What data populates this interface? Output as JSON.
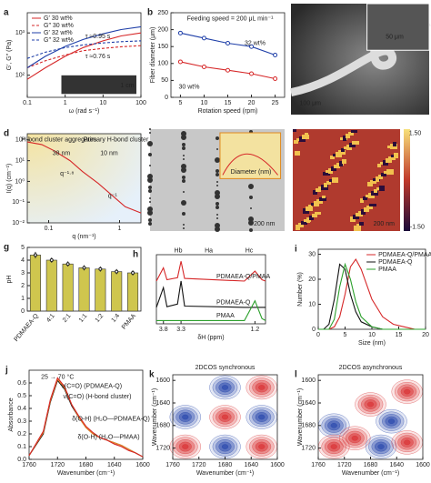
{
  "chart_data": [
    {
      "label": "a",
      "type": "line",
      "xlog": true,
      "ylog": true,
      "xlim": [
        0.1,
        100
      ],
      "ylim": [
        30,
        3000
      ],
      "xticks": [
        0.1,
        1,
        10,
        100
      ],
      "yticks": [
        {
          "value": 100,
          "label": "10²"
        },
        {
          "value": 1000,
          "label": "10³"
        }
      ],
      "xlabel": "ω (rad s⁻¹)",
      "ylabel": "G′, G″ (Pa)",
      "legend": "upper left",
      "x": [
        0.1,
        0.3,
        1,
        3,
        10,
        30,
        100
      ],
      "series": [
        {
          "name": "G′ 30 wt%",
          "color": "#d62728",
          "dash": false,
          "values": [
            80,
            150,
            280,
            450,
            650,
            850,
            1000
          ]
        },
        {
          "name": "G″ 30 wt%",
          "color": "#d62728",
          "dash": true,
          "values": [
            150,
            220,
            300,
            380,
            430,
            470,
            500
          ]
        },
        {
          "name": "G′ 32 wt%",
          "color": "#1f3fa8",
          "dash": false,
          "values": [
            150,
            280,
            480,
            700,
            950,
            1200,
            1400
          ]
        },
        {
          "name": "G″ 32 wt%",
          "color": "#1f3fa8",
          "dash": true,
          "values": [
            250,
            350,
            450,
            520,
            580,
            620,
            650
          ]
        }
      ],
      "annotations": [
        "τ ≈0.95 s",
        "τ ≈0.76 s",
        "1 cm"
      ]
    },
    {
      "label": "b",
      "type": "line",
      "markers": true,
      "xlim": [
        3,
        27
      ],
      "ylim": [
        0,
        250
      ],
      "xticks": [
        5,
        10,
        15,
        20,
        25
      ],
      "yticks": [
        0,
        50,
        100,
        150,
        200,
        250
      ],
      "xlabel": "Rotation speed (rpm)",
      "ylabel": "Fiber diameter (μm)",
      "x": [
        5,
        10,
        15,
        20,
        25
      ],
      "series": [
        {
          "color": "#1f3fa8",
          "values": [
            190,
            175,
            160,
            150,
            125
          ]
        },
        {
          "color": "#d62728",
          "values": [
            105,
            90,
            80,
            70,
            55
          ]
        }
      ],
      "annotations": [
        "Feeding speed = 200 μL min⁻¹",
        "32 wt%",
        "30 wt%"
      ]
    },
    {
      "label": "c",
      "type": "image",
      "annotations": [
        "50 μm",
        "100 μm"
      ]
    },
    {
      "label": "d",
      "type": "line",
      "xlog": true,
      "ylog": true,
      "xlim": [
        0.05,
        2
      ],
      "ylim": [
        0.01,
        200
      ],
      "xticks": [
        0.1,
        1
      ],
      "yticks": [
        {
          "value": 0.01,
          "label": "10⁻²"
        },
        {
          "value": 0.1,
          "label": "10⁻¹"
        },
        {
          "value": 1,
          "label": "10⁰"
        },
        {
          "value": 10,
          "label": "10¹"
        },
        {
          "value": 100,
          "label": "10²"
        }
      ],
      "xlabel": "q (nm⁻¹)",
      "ylabel": "I(q) (cm⁻¹)",
      "x": [
        0.05,
        0.08,
        0.12,
        0.2,
        0.3,
        0.5,
        0.8,
        1.2,
        2
      ],
      "series": [
        {
          "color": "#d62728",
          "values": [
            80,
            60,
            30,
            10,
            3,
            0.8,
            0.2,
            0.06,
            0.03
          ]
        }
      ],
      "annotations": [
        "H-bond cluster aggregates",
        "Primary H-bond cluster",
        "38 nm",
        "10 nm",
        "q⁻¹·⁸",
        "q⁻¹"
      ]
    },
    {
      "label": "e",
      "type": "image",
      "annotations": [
        "Diameter (nm)",
        "200 nm"
      ]
    },
    {
      "label": "f",
      "type": "image",
      "annotations": [
        "1.50",
        "-1.50",
        "200 nm"
      ]
    },
    {
      "label": "g",
      "type": "bar",
      "ylim": [
        0,
        5
      ],
      "yticks": [
        0,
        1,
        2,
        3,
        4,
        5
      ],
      "ylabel": "pH",
      "color": "#cfc64e",
      "categories": [
        "PDMAEA-Q",
        "4:1",
        "2:1",
        "1:1",
        "1:2",
        "1:4",
        "PMAA"
      ],
      "values": [
        4.4,
        4.0,
        3.7,
        3.4,
        3.3,
        3.1,
        3.0
      ],
      "errors": [
        0.25,
        0.2,
        0.2,
        0.2,
        0.2,
        0.2,
        0.2
      ]
    },
    {
      "label": "h",
      "type": "line",
      "xlim": [
        4.0,
        0.9
      ],
      "ylim": [
        -0.5,
        10
      ],
      "xticks": [
        3.8,
        3.3,
        1.2
      ],
      "xlabel": "δH (ppm)",
      "labels": true,
      "x": [
        4.0,
        3.8,
        3.7,
        3.4,
        3.3,
        3.2,
        1.5,
        1.2,
        1.0,
        0.9
      ],
      "series": [
        {
          "name": "PDMAEA-Q/PMAA",
          "color": "#d62728",
          "values": [
            6,
            8,
            6.2,
            6.5,
            9,
            6.4,
            6,
            7.5,
            6.2,
            6
          ]
        },
        {
          "name": "PDMAEA-Q",
          "color": "#111111",
          "values": [
            2,
            5,
            2.1,
            2.5,
            6,
            2.2,
            2,
            2,
            2,
            2
          ]
        },
        {
          "name": "PMAA",
          "color": "#2ca02c",
          "values": [
            0,
            0,
            0,
            0,
            0,
            0,
            0,
            3,
            0.3,
            0
          ]
        }
      ],
      "annotations": [
        "Hb",
        "Ha",
        "Hc"
      ]
    },
    {
      "label": "i",
      "type": "line",
      "xlim": [
        0,
        20
      ],
      "ylim": [
        0,
        32
      ],
      "xticks": [
        0,
        5,
        10,
        15,
        20
      ],
      "yticks": [
        0,
        10,
        20,
        30
      ],
      "xlabel": "Size (nm)",
      "ylabel": "Number (%)",
      "legend": "upper right",
      "x": [
        0,
        1,
        2,
        3,
        4,
        5,
        6,
        7,
        8,
        10,
        12,
        14,
        16,
        18,
        20
      ],
      "series": [
        {
          "name": "PDMAEA-Q/PMAA",
          "color": "#d62728",
          "values": [
            0,
            0,
            0,
            1,
            5,
            14,
            25,
            28,
            24,
            12,
            5,
            2,
            1,
            0,
            0
          ]
        },
        {
          "name": "PDMAEA-Q",
          "color": "#111111",
          "values": [
            0,
            0,
            2,
            12,
            26,
            24,
            14,
            7,
            3,
            1,
            0,
            0,
            0,
            0,
            0
          ]
        },
        {
          "name": "PMAA",
          "color": "#2ca02c",
          "values": [
            0,
            0,
            0,
            4,
            17,
            26,
            20,
            11,
            5,
            1,
            0,
            0,
            0,
            0,
            0
          ]
        }
      ]
    },
    {
      "label": "j",
      "type": "line",
      "xlim": [
        1760,
        1600
      ],
      "ylim": [
        0,
        0.7
      ],
      "xticks": [
        1760,
        1720,
        1680,
        1640,
        1600
      ],
      "yticks": [
        {
          "value": 0,
          "label": "0.0"
        },
        0.1,
        0.2,
        0.3,
        0.4,
        0.5,
        0.6
      ],
      "xlabel": "Wavenumber (cm⁻¹)",
      "ylabel": "Absorbance",
      "x": [
        1760,
        1740,
        1730,
        1720,
        1710,
        1700,
        1690,
        1680,
        1670,
        1660,
        1650,
        1640,
        1630,
        1620,
        1610,
        1600
      ],
      "series": [
        {
          "color": "#111111",
          "values": [
            0.03,
            0.2,
            0.45,
            0.62,
            0.55,
            0.42,
            0.33,
            0.25,
            0.2,
            0.17,
            0.15,
            0.13,
            0.11,
            0.08,
            0.05,
            0.02
          ]
        },
        {
          "color": "#f08a24",
          "values": [
            0.03,
            0.21,
            0.46,
            0.63,
            0.56,
            0.43,
            0.33,
            0.25,
            0.2,
            0.17,
            0.15,
            0.13,
            0.11,
            0.08,
            0.05,
            0.02
          ]
        },
        {
          "color": "#d62728",
          "values": [
            0.03,
            0.22,
            0.47,
            0.64,
            0.57,
            0.43,
            0.34,
            0.26,
            0.21,
            0.17,
            0.15,
            0.12,
            0.1,
            0.07,
            0.05,
            0.02
          ]
        }
      ],
      "annotations": [
        "25 → 70 °C",
        "ν(C=O) (PDMAEA-Q)",
        "ν(C=O) (H-bond cluster)",
        "δ(O-H) (H₂O—PDMAEA-Q)",
        "δ(O-H) (H₂O—PMAA)"
      ]
    },
    {
      "label": "k",
      "type": "contour",
      "title": "2DCOS synchronous",
      "xlim": [
        1760,
        1600
      ],
      "ylim": [
        1740,
        1590
      ],
      "xticks": [
        1760,
        1720,
        1680,
        1640,
        1600
      ],
      "yticks": [
        1600,
        1640,
        1680,
        1720
      ],
      "xlabel": "Wavenumber (cm⁻¹)",
      "ylabel": "Wavenumber (cm⁻¹)"
    },
    {
      "label": "l",
      "type": "contour",
      "title": "2DCOS asynchronous",
      "xlim": [
        1760,
        1600
      ],
      "ylim": [
        1740,
        1590
      ],
      "xticks": [
        1760,
        1720,
        1680,
        1640,
        1600
      ],
      "yticks": [
        1600,
        1640,
        1680,
        1720
      ],
      "xlabel": "Wavenumber (cm⁻¹)",
      "ylabel": "Wavenumber (cm⁻¹)"
    }
  ]
}
